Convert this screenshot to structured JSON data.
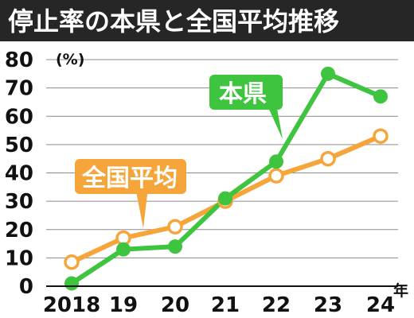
{
  "chart_data": {
    "type": "line",
    "title": "停止率の本県と全国平均推移",
    "y_unit": "(%)",
    "x_unit": "年",
    "categories": [
      "2018",
      "19",
      "20",
      "21",
      "22",
      "23",
      "24"
    ],
    "ylim": [
      0,
      80
    ],
    "yticks": [
      "0",
      "10",
      "20",
      "30",
      "40",
      "50",
      "60",
      "70",
      "80"
    ],
    "grid": true,
    "legend": "inline-callouts",
    "series": [
      {
        "name": "本県",
        "color": "#3fc43f",
        "marker": "filled",
        "values": [
          1,
          13,
          14,
          31,
          44,
          75,
          67
        ]
      },
      {
        "name": "全国平均",
        "color": "#f5a53a",
        "marker": "hollow",
        "values": [
          8.5,
          17,
          21,
          30,
          39,
          45,
          53
        ]
      }
    ]
  }
}
